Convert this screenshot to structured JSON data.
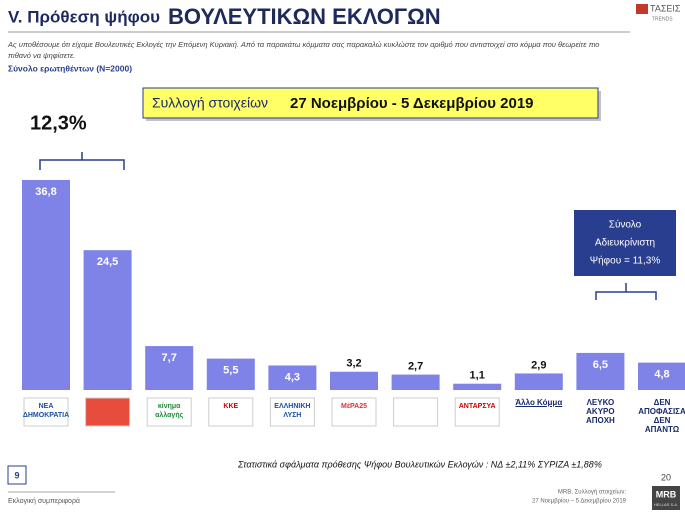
{
  "chart_data": {
    "type": "bar",
    "title": "V. Πρόθεση ψήφου",
    "title_emphasis": "ΒΟΥΛΕΥΤΙΚΩΝ ΕΚΛΟΓΩΝ",
    "subtitle": [
      "Ας υποθέσουμε ότι είχαμε Βουλευτικές Εκλογές την Επόμενη Κυριακή. Από τα παρακάτω κόμματα σας παρακαλώ κυκλώστε τον αριθμό που αντιστοιχεί στο κόμμα που θεωρείτε πιο",
      "πιθανό να ψηφίσετε."
    ],
    "sample": "Σύνολο ερωτηθέντων (N=2000)",
    "period_label": "Συλλογή στοιχείων",
    "period": "27 Νοεμβρίου - 5 Δεκεμβρίου 2019",
    "categories": [
      "ΝΕΑ ΔΗΜΟΚΡΑΤΙΑ",
      null,
      "κίνημα αλλαγής",
      "ΚΚΕ",
      "ΕΛΛΗΝΙΚΗ ΛΥΣΗ",
      "ΜέΡΑ25",
      null,
      "ΑΝΤΑΡΣΥΑ",
      "Άλλο Κόμμα",
      "ΛΕΥΚΟ ΑΚΥΡΟ ΑΠΟΧΗ",
      "ΔΕΝ ΑΠΟΦΑΣΙΣΑ ΔΕΝ ΑΠΑΝΤΩ"
    ],
    "values": [
      36.8,
      24.5,
      7.7,
      5.5,
      4.3,
      3.2,
      2.7,
      1.1,
      2.9,
      6.5,
      4.8
    ],
    "value_labels": [
      "36,8",
      "24,5",
      "7,7",
      "5,5",
      "4,3",
      "3,2",
      "2,7",
      "1,1",
      "2,9",
      "6,5",
      "4,8"
    ],
    "color": "#7f82e6",
    "gap_annotation": "12,3%",
    "undecided_annotation": [
      "Σύνολο",
      "Αδιευκρίνιστη",
      "Ψήφου = 11,3%"
    ],
    "footnote": "Στατιστικά σφάλματα πρόθεσης Ψήφου Βουλευτικών Εκλογών : ΝΔ ±2,11% ΣΥΡΙΖΑ ±1,88%"
  },
  "page": {
    "slide_number": "9",
    "page_number": "20",
    "section": "Εκλογική συμπεριφορά",
    "source": [
      "MRB, Συλλογή στοιχείων:",
      "27 Νοεμβρίου – 5 Δεκεμβρίου 2019"
    ],
    "brand_top": "ΤΑΣΕΙΣ",
    "brand_top_sub": "TRENDS",
    "brand_bottom": "MRB",
    "brand_bottom_sub": "HELLAS S.A."
  }
}
